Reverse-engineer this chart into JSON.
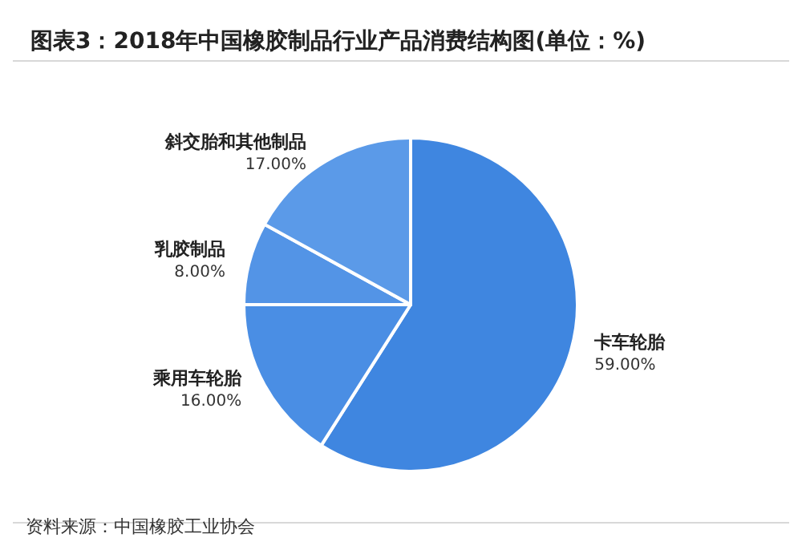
{
  "chart_data": {
    "type": "pie",
    "title": "图表3：2018年中国橡胶制品行业产品消费结构图(单位：%)",
    "categories": [
      "卡车轮胎",
      "乘用车轮胎",
      "乳胶制品",
      "斜交胎和其他制品"
    ],
    "values": [
      59,
      16,
      8,
      17
    ],
    "value_labels": [
      "59.00%",
      "16.00%",
      "8.00%",
      "17.00%"
    ],
    "colors": [
      "#3f86e0",
      "#4a8ee4",
      "#5394e6",
      "#5b9ae8"
    ],
    "legend": false,
    "annotations": [
      "资料来源：中国橡胶工业协会"
    ]
  }
}
